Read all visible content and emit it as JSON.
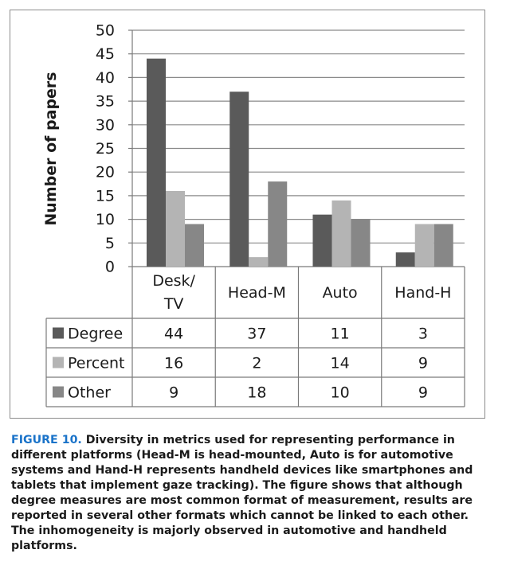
{
  "chart_data": {
    "type": "bar",
    "ylabel": "Number of papers",
    "ylim": [
      0,
      50
    ],
    "yticks": [
      0,
      5,
      10,
      15,
      20,
      25,
      30,
      35,
      40,
      45,
      50
    ],
    "categories": [
      {
        "line1": "Desk/",
        "line2": "TV"
      },
      {
        "line1": "Head-M",
        "line2": ""
      },
      {
        "line1": "Auto",
        "line2": ""
      },
      {
        "line1": "Hand-H",
        "line2": ""
      }
    ],
    "series": [
      {
        "name": "Degree",
        "values": [
          44,
          37,
          11,
          3
        ],
        "color": "#5a5a5a"
      },
      {
        "name": "Percent",
        "values": [
          16,
          2,
          14,
          9
        ],
        "color": "#b4b4b4"
      },
      {
        "name": "Other",
        "values": [
          9,
          18,
          10,
          9
        ],
        "color": "#878787"
      }
    ],
    "grid": true,
    "data_table": true
  },
  "caption": {
    "label": "FIGURE 10.",
    "text": "Diversity in metrics used for representing performance in different platforms (Head-M is head-mounted, Auto is for automotive systems and Hand-H represents handheld devices like smartphones and tablets that implement gaze tracking). The figure shows that although degree measures are most common format of measurement, results are reported in several other formats which cannot be linked to each other. The inhomogeneity is majorly observed in automotive and handheld platforms."
  }
}
